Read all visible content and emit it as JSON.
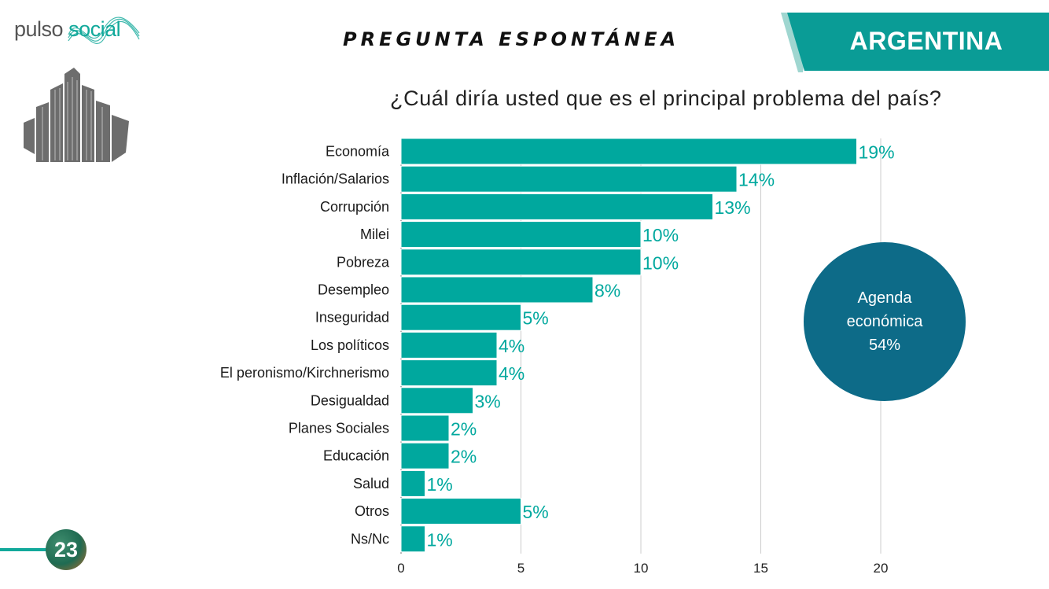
{
  "logo": {
    "part1": "pulso",
    "part2": "social"
  },
  "header": {
    "section_title": "PREGUNTA ESPONTÁNEA",
    "country": "ARGENTINA"
  },
  "question": "¿Cuál diría usted que es el principal problema del país?",
  "callout": {
    "line1": "Agenda",
    "line2": "económica",
    "line3": "54%"
  },
  "page_number": "23",
  "colors": {
    "bar": "#00a89e",
    "bubble": "#0d6b88",
    "accent": "#12a99b",
    "grid": "#cccccc"
  },
  "chart_data": {
    "type": "bar",
    "orientation": "horizontal",
    "categories": [
      "Economía",
      "Inflación/Salarios",
      "Corrupción",
      "Milei",
      "Pobreza",
      "Desempleo",
      "Inseguridad",
      "Los políticos",
      "El peronismo/Kirchnerismo",
      "Desigualdad",
      "Planes Sociales",
      "Educación",
      "Salud",
      "Otros",
      "Ns/Nc"
    ],
    "values": [
      19,
      14,
      13,
      10,
      10,
      8,
      5,
      4,
      4,
      3,
      2,
      2,
      1,
      5,
      1
    ],
    "value_labels": [
      "19%",
      "14%",
      "13%",
      "10%",
      "10%",
      "8%",
      "5%",
      "4%",
      "4%",
      "3%",
      "2%",
      "2%",
      "1%",
      "5%",
      "1%"
    ],
    "xlim": [
      0,
      20
    ],
    "xticks": [
      0,
      5,
      10,
      15,
      20
    ],
    "grid": true,
    "title": "",
    "xlabel": "",
    "ylabel": ""
  }
}
